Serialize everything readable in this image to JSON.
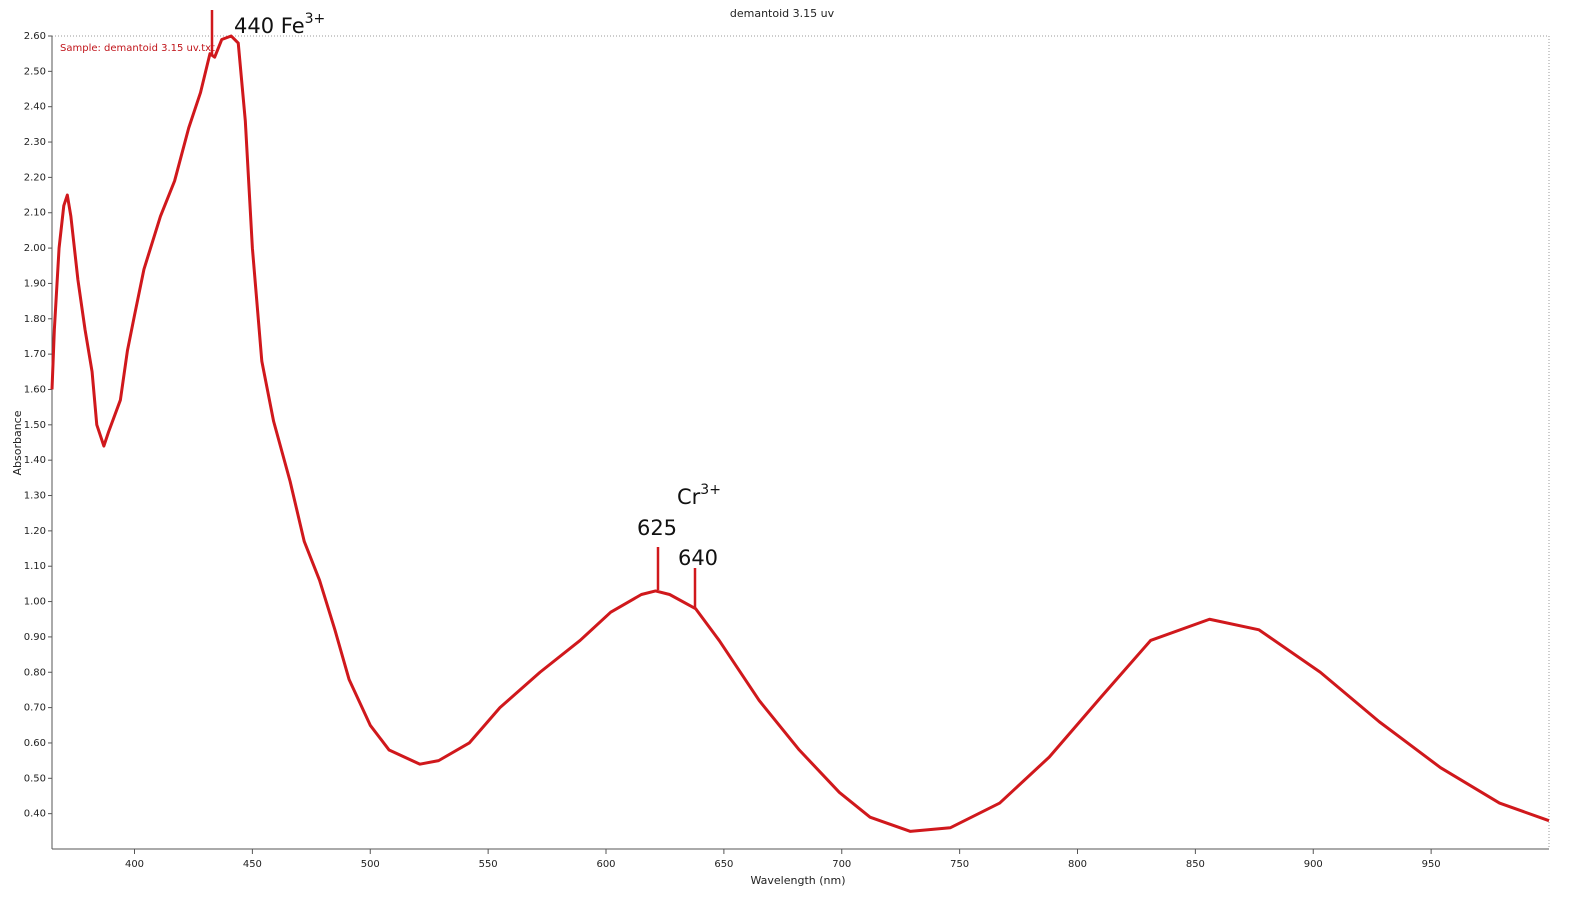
{
  "chart_data": {
    "type": "line",
    "title": "demantoid 3.15 uv",
    "x_label": "Wavelength (nm)",
    "y_label": "Absorbance",
    "x": [
      365,
      366,
      368,
      370,
      371.5,
      373,
      376,
      379,
      382,
      384,
      387,
      389,
      394,
      397,
      400,
      404,
      411,
      417,
      423,
      428,
      432,
      434,
      437,
      441,
      444,
      447,
      450,
      454,
      459,
      466,
      472,
      478.5,
      485,
      491,
      500,
      508,
      521,
      529,
      542,
      555,
      572,
      589,
      602,
      615,
      621,
      627,
      638,
      648,
      665,
      682,
      699,
      712,
      729,
      746,
      767,
      788,
      810,
      831,
      856,
      877,
      903,
      928,
      954,
      979,
      1000
    ],
    "series": [
      {
        "name": "Sample: demantoid 3.15 uv.txt",
        "color": "#d0181c",
        "values": [
          1.6,
          1.77,
          2.0,
          2.12,
          2.15,
          2.09,
          1.91,
          1.77,
          1.65,
          1.5,
          1.44,
          1.48,
          1.57,
          1.71,
          1.81,
          1.94,
          2.09,
          2.19,
          2.34,
          2.44,
          2.55,
          2.54,
          2.59,
          2.6,
          2.58,
          2.36,
          2.0,
          1.68,
          1.51,
          1.34,
          1.17,
          1.06,
          0.92,
          0.78,
          0.65,
          0.58,
          0.54,
          0.55,
          0.6,
          0.7,
          0.8,
          0.89,
          0.97,
          1.02,
          1.03,
          1.02,
          0.98,
          0.89,
          0.72,
          0.58,
          0.46,
          0.39,
          0.35,
          0.36,
          0.43,
          0.56,
          0.73,
          0.89,
          0.95,
          0.92,
          0.8,
          0.66,
          0.53,
          0.43,
          0.38
        ]
      }
    ],
    "xlim": [
      365,
      1000
    ],
    "xticks": [
      400,
      450,
      500,
      550,
      600,
      650,
      700,
      750,
      800,
      850,
      900,
      950
    ],
    "ylim": [
      0.3,
      2.6
    ],
    "yticks": [
      {
        "value": 0.4,
        "label": "0.40"
      },
      {
        "value": 0.5,
        "label": "0.50"
      },
      {
        "value": 0.6,
        "label": "0.60"
      },
      {
        "value": 0.7,
        "label": "0.70"
      },
      {
        "value": 0.8,
        "label": "0.80"
      },
      {
        "value": 0.9,
        "label": "0.90"
      },
      {
        "value": 1.0,
        "label": "1.00"
      },
      {
        "value": 1.1,
        "label": "1.10"
      },
      {
        "value": 1.2,
        "label": "1.20"
      },
      {
        "value": 1.3,
        "label": "1.30"
      },
      {
        "value": 1.4,
        "label": "1.40"
      },
      {
        "value": 1.5,
        "label": "1.50"
      },
      {
        "value": 1.6,
        "label": "1.60"
      },
      {
        "value": 1.7,
        "label": "1.70"
      },
      {
        "value": 1.8,
        "label": "1.80"
      },
      {
        "value": 1.9,
        "label": "1.90"
      },
      {
        "value": 2.0,
        "label": "2.00"
      },
      {
        "value": 2.1,
        "label": "2.10"
      },
      {
        "value": 2.2,
        "label": "2.20"
      },
      {
        "value": 2.3,
        "label": "2.30"
      },
      {
        "value": 2.4,
        "label": "2.40"
      },
      {
        "value": 2.5,
        "label": "2.50"
      },
      {
        "value": 2.6,
        "label": "2.60"
      }
    ],
    "grid": false,
    "annotations": [
      {
        "text": "440 Fe",
        "sup": "3+"
      },
      {
        "text": "Cr",
        "sup": "3+"
      },
      {
        "text": "625"
      },
      {
        "text": "640"
      }
    ]
  }
}
